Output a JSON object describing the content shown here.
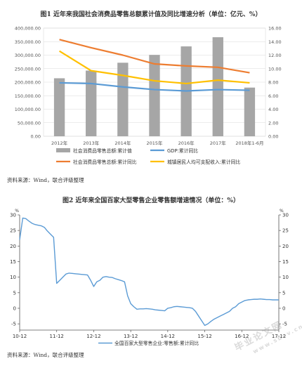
{
  "chart1_title": "图1   近年来我国社会消费品零售总额累计值及同比增速分析（单位：亿元、%）",
  "chart1_source": "资料来源：Wind，联合评级整理",
  "chart2_title": "图2   近年来全国百家大型零售企业零售额增速情况（单位：%）",
  "chart2_source": "资料来源：Wind，联合评级整理",
  "watermark_cn": "毕业论文网",
  "watermark_url": "www.sbvv.cn",
  "chart_data": [
    {
      "type": "bar",
      "categories": [
        "2012年",
        "2013年",
        "2014年",
        "2015年",
        "2016年",
        "2017年",
        "2018年1-6月"
      ],
      "series": [
        {
          "name": "社会消费品零售总额:累计值",
          "axis": "left",
          "kind": "bar",
          "color": "#a6a6a6",
          "values": [
            214433,
            242843,
            271896,
            300931,
            332316,
            366262,
            180018
          ]
        },
        {
          "name": "GDP:累计同比",
          "axis": "right",
          "kind": "line",
          "color": "#5b9bd5",
          "values": [
            7.9,
            7.8,
            7.3,
            6.9,
            6.7,
            6.9,
            6.8
          ]
        },
        {
          "name": "社会消费品零售总额:累计同比",
          "axis": "right",
          "kind": "line",
          "color": "#ed7d31",
          "values": [
            14.3,
            13.1,
            12.0,
            10.7,
            10.4,
            10.2,
            9.4
          ]
        },
        {
          "name": "城镇居民人均可支配收入:累计同比",
          "axis": "right",
          "kind": "line",
          "color": "#ffc000",
          "values": [
            12.6,
            9.7,
            9.0,
            8.2,
            7.8,
            8.3,
            7.9
          ]
        }
      ],
      "y_left_ticks": [
        "0.00",
        "50,000.00",
        "100,000.00",
        "150,000.00",
        "200,000.00",
        "250,000.00",
        "300,000.00",
        "350,000.00",
        "400,000.00"
      ],
      "y_left_range": [
        0,
        400000
      ],
      "y_right_ticks": [
        "0.00",
        "2.00",
        "4.00",
        "6.00",
        "8.00",
        "10.00",
        "12.00",
        "14.00",
        "16.00"
      ],
      "y_right_range": [
        0,
        16
      ],
      "grid": true,
      "legend": "bottom"
    },
    {
      "type": "line",
      "x_ticks": [
        "10-12",
        "11-12",
        "12-12",
        "13-12",
        "14-12",
        "15-12",
        "16-12",
        "17-12"
      ],
      "y_ticks_left": [
        "-5",
        "0",
        "5",
        "10",
        "15",
        "20",
        "25",
        "30"
      ],
      "y_ticks_right": [
        "-5",
        "0",
        "5",
        "10",
        "15",
        "20",
        "25",
        "30"
      ],
      "y_unit": "%",
      "y_range": [
        -7,
        30
      ],
      "x_range": [
        "2010-12",
        "2017-12"
      ],
      "grid": false,
      "legend": "bottom",
      "series": [
        {
          "name": "全国百家大型零售企业:零售额:累计同比",
          "color": "#5b9bd5",
          "x": [
            "2010-12",
            "2011-01",
            "2011-02",
            "2011-03",
            "2011-04",
            "2011-05",
            "2011-06",
            "2011-07",
            "2011-08",
            "2011-09",
            "2011-10",
            "2011-11",
            "2011-12",
            "2012-01",
            "2012-02",
            "2012-03",
            "2012-04",
            "2012-05",
            "2012-06",
            "2012-07",
            "2012-08",
            "2012-09",
            "2012-10",
            "2012-11",
            "2012-12",
            "2013-01",
            "2013-02",
            "2013-03",
            "2013-04",
            "2013-05",
            "2013-06",
            "2013-07",
            "2013-08",
            "2013-09",
            "2013-10",
            "2013-11",
            "2013-12",
            "2014-01",
            "2014-02",
            "2014-03",
            "2014-04",
            "2014-05",
            "2014-06",
            "2014-07",
            "2014-08",
            "2014-09",
            "2014-10",
            "2014-11",
            "2014-12",
            "2015-01",
            "2015-02",
            "2015-03",
            "2015-04",
            "2015-05",
            "2015-06",
            "2015-07",
            "2015-08",
            "2015-09",
            "2015-10",
            "2015-11",
            "2015-12",
            "2016-01",
            "2016-02",
            "2016-03",
            "2016-04",
            "2016-05",
            "2016-06",
            "2016-07",
            "2016-08",
            "2016-09",
            "2016-10",
            "2016-11",
            "2016-12",
            "2017-01",
            "2017-02",
            "2017-03",
            "2017-04",
            "2017-05",
            "2017-06",
            "2017-07",
            "2017-08",
            "2017-09",
            "2017-10",
            "2017-11",
            "2017-12"
          ],
          "values": [
            22.0,
            29.0,
            28.8,
            28.0,
            27.3,
            26.9,
            26.7,
            26.5,
            26.0,
            24.8,
            23.8,
            22.8,
            8.0,
            9.0,
            10.0,
            11.0,
            11.3,
            11.2,
            11.1,
            11.0,
            10.9,
            10.8,
            10.7,
            9.0,
            7.0,
            8.5,
            9.0,
            10.0,
            10.2,
            10.0,
            9.9,
            9.5,
            9.2,
            8.9,
            8.5,
            4.0,
            1.5,
            0.5,
            -0.3,
            -0.2,
            -0.2,
            -0.1,
            -0.2,
            -0.3,
            -0.5,
            -0.6,
            -0.7,
            -0.8,
            0.0,
            0.2,
            0.5,
            0.6,
            0.5,
            0.4,
            0.3,
            0.2,
            0.0,
            -1.0,
            -2.5,
            -4.0,
            -5.5,
            -5.0,
            -4.2,
            -3.5,
            -3.0,
            -2.5,
            -2.0,
            -1.5,
            -1.0,
            0.0,
            0.5,
            1.5,
            2.0,
            2.5,
            2.7,
            2.8,
            2.9,
            2.9,
            3.0,
            2.9,
            2.8,
            2.8,
            2.7,
            2.7,
            2.7
          ]
        }
      ]
    }
  ]
}
